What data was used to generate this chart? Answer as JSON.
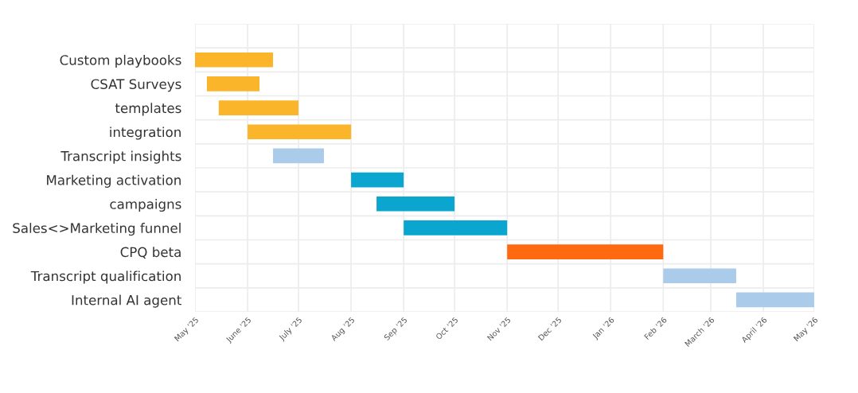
{
  "chart_data": {
    "type": "bar",
    "orientation": "horizontal",
    "categories": [
      "Custom playbooks",
      "CSAT Surveys",
      "templates",
      "integration",
      "Transcript insights",
      "Marketing activation",
      "campaigns",
      "Sales<>Marketing funnel",
      "CPQ beta",
      "Transcript qualification",
      "Internal AI agent"
    ],
    "base": [
      20209,
      20216,
      20223,
      20240,
      20255,
      20301,
      20316,
      20332,
      20393,
      20485,
      20528
    ],
    "values": [
      46,
      31,
      47,
      61,
      30,
      31,
      46,
      61,
      92,
      43,
      46
    ],
    "colors": [
      "#fbb52a",
      "#fbb52a",
      "#fbb52a",
      "#fbb52a",
      "#aacbe9",
      "#0aa6d0",
      "#0aa6d0",
      "#0aa6d0",
      "#ff6a10",
      "#aacbe9",
      "#aacbe9"
    ],
    "xlim": [
      "2025-05-01",
      "2026-05-01"
    ],
    "xticks": [
      {
        "value": "2025-05-01",
        "label": "May '25"
      },
      {
        "value": "2025-06-01",
        "label": "June '25"
      },
      {
        "value": "2025-07-01",
        "label": "July '25"
      },
      {
        "value": "2025-08-01",
        "label": "Aug '25"
      },
      {
        "value": "2025-09-01",
        "label": "Sep '25"
      },
      {
        "value": "2025-10-01",
        "label": "Oct '25"
      },
      {
        "value": "2025-11-01",
        "label": "Nov '25"
      },
      {
        "value": "2025-12-01",
        "label": "Dec '25"
      },
      {
        "value": "2026-01-01",
        "label": "Jan '26"
      },
      {
        "value": "2026-02-01",
        "label": "Feb '26"
      },
      {
        "value": "2026-03-01",
        "label": "March '26"
      },
      {
        "value": "2026-04-01",
        "label": "April '26"
      },
      {
        "value": "2026-05-01",
        "label": "May '26"
      }
    ],
    "grid": true
  }
}
